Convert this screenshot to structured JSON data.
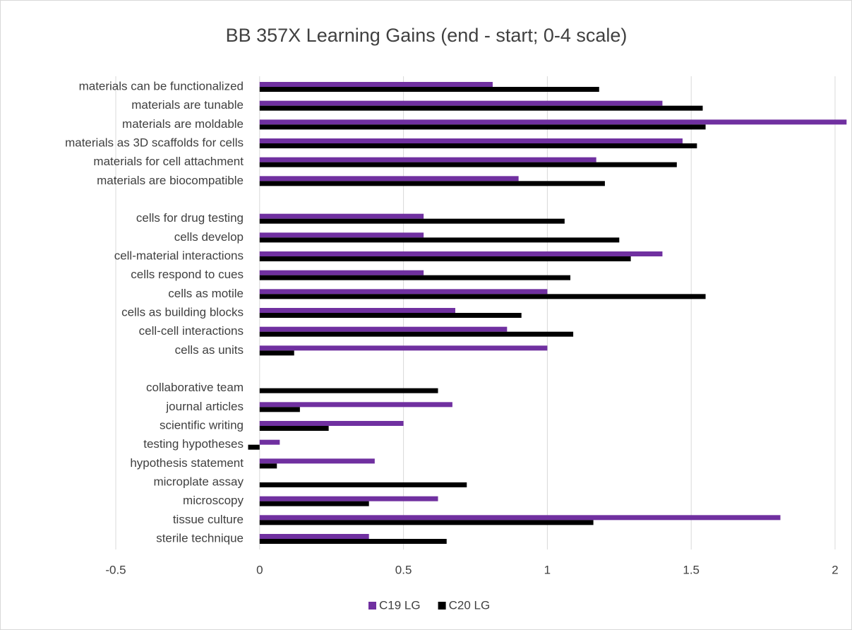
{
  "chart_data": {
    "type": "barh",
    "title": "BB 357X Learning Gains (end - start; 0-4 scale)",
    "categories": [
      "materials can be functionalized",
      "materials are tunable",
      "materials are moldable",
      "materials as 3D scaffolds for cells",
      "materials for cell attachment",
      "materials are biocompatible",
      null,
      "cells for drug testing",
      "cells develop",
      "cell-material interactions",
      "cells respond to cues",
      "cells as motile",
      "cells as building blocks",
      "cell-cell interactions",
      "cells as units",
      null,
      "collaborative team",
      "journal articles",
      "scientific writing",
      "testing hypotheses",
      "hypothesis statement",
      "microplate assay",
      "microscopy",
      "tissue culture",
      "sterile technique"
    ],
    "series": [
      {
        "name": "C19 LG",
        "color": "#7030a0",
        "values": [
          0.81,
          1.4,
          2.04,
          1.47,
          1.17,
          0.9,
          null,
          0.57,
          0.57,
          1.4,
          0.57,
          1.0,
          0.68,
          0.86,
          1.0,
          null,
          null,
          0.67,
          0.5,
          0.07,
          0.4,
          null,
          0.62,
          1.81,
          0.38
        ]
      },
      {
        "name": "C20 LG",
        "color": "#000000",
        "values": [
          1.18,
          1.54,
          1.55,
          1.52,
          1.45,
          1.2,
          null,
          1.06,
          1.25,
          1.29,
          1.08,
          1.55,
          0.91,
          1.09,
          0.12,
          null,
          0.62,
          0.14,
          0.24,
          -0.04,
          0.06,
          0.72,
          0.38,
          1.16,
          0.65
        ]
      }
    ],
    "xlim": [
      -0.5,
      2
    ],
    "xticks": [
      -0.5,
      0,
      0.5,
      1,
      1.5,
      2
    ],
    "grid": true,
    "legend": "bottom"
  }
}
